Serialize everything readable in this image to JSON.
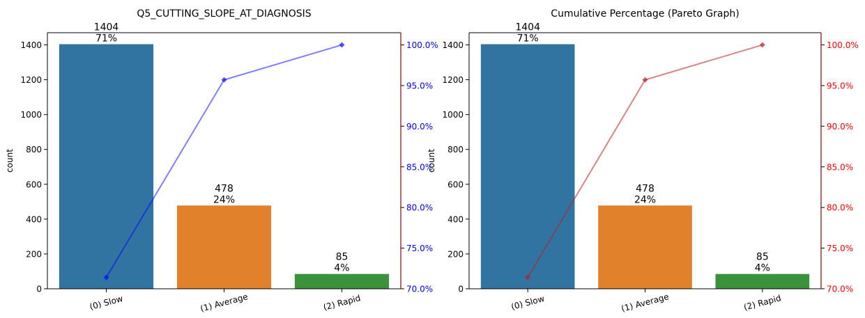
{
  "chart_data": [
    {
      "type": "bar",
      "title": "Q5_CUTTING_SLOPE_AT_DIAGNOSIS",
      "xlabel": "",
      "ylabel": "count",
      "categories": [
        "(0) Slow",
        "(1) Average",
        "(2) Rapid"
      ],
      "values": [
        1404,
        478,
        85
      ],
      "bar_count_labels": [
        "1404",
        "478",
        "85"
      ],
      "bar_percent_labels": [
        "71%",
        "24%",
        "4%"
      ],
      "bar_colors": [
        "#3274a1",
        "#e1812c",
        "#3a923a"
      ],
      "ylim": [
        0,
        1470
      ],
      "yticks": [
        0,
        200,
        400,
        600,
        800,
        1000,
        1200,
        1400
      ],
      "secondary_axis": {
        "type": "line",
        "values": [
          71.4,
          95.7,
          100.0
        ],
        "ylim": [
          70.0,
          101.5
        ],
        "ticks": [
          70.0,
          75.0,
          80.0,
          85.0,
          90.0,
          95.0,
          100.0
        ],
        "tick_labels": [
          "70.0%",
          "75.0%",
          "80.0%",
          "85.0%",
          "90.0%",
          "95.0%",
          "100.0%"
        ],
        "tick_label_color": "#0000ff",
        "spine_color": "#8b0000",
        "line_color": "#0000ff",
        "line_alpha": 0.5,
        "marker": "diamond"
      },
      "grid": false
    },
    {
      "type": "bar",
      "title": "Cumulative Percentage (Pareto Graph)",
      "xlabel": "",
      "ylabel": "count",
      "categories": [
        "(0) Slow",
        "(1) Average",
        "(2) Rapid"
      ],
      "values": [
        1404,
        478,
        85
      ],
      "bar_count_labels": [
        "1404",
        "478",
        "85"
      ],
      "bar_percent_labels": [
        "71%",
        "24%",
        "4%"
      ],
      "bar_colors": [
        "#3274a1",
        "#e1812c",
        "#3a923a"
      ],
      "ylim": [
        0,
        1470
      ],
      "yticks": [
        0,
        200,
        400,
        600,
        800,
        1000,
        1200,
        1400
      ],
      "secondary_axis": {
        "type": "line",
        "values": [
          71.4,
          95.7,
          100.0
        ],
        "ylim": [
          70.0,
          101.5
        ],
        "ticks": [
          70.0,
          75.0,
          80.0,
          85.0,
          90.0,
          95.0,
          100.0
        ],
        "tick_labels": [
          "70.0%",
          "75.0%",
          "80.0%",
          "85.0%",
          "90.0%",
          "95.0%",
          "100.0%"
        ],
        "tick_label_color": "#ff0000",
        "spine_color": "#8b0000",
        "line_color": "#b22222",
        "line_alpha": 0.55,
        "marker": "diamond"
      },
      "grid": false
    }
  ]
}
